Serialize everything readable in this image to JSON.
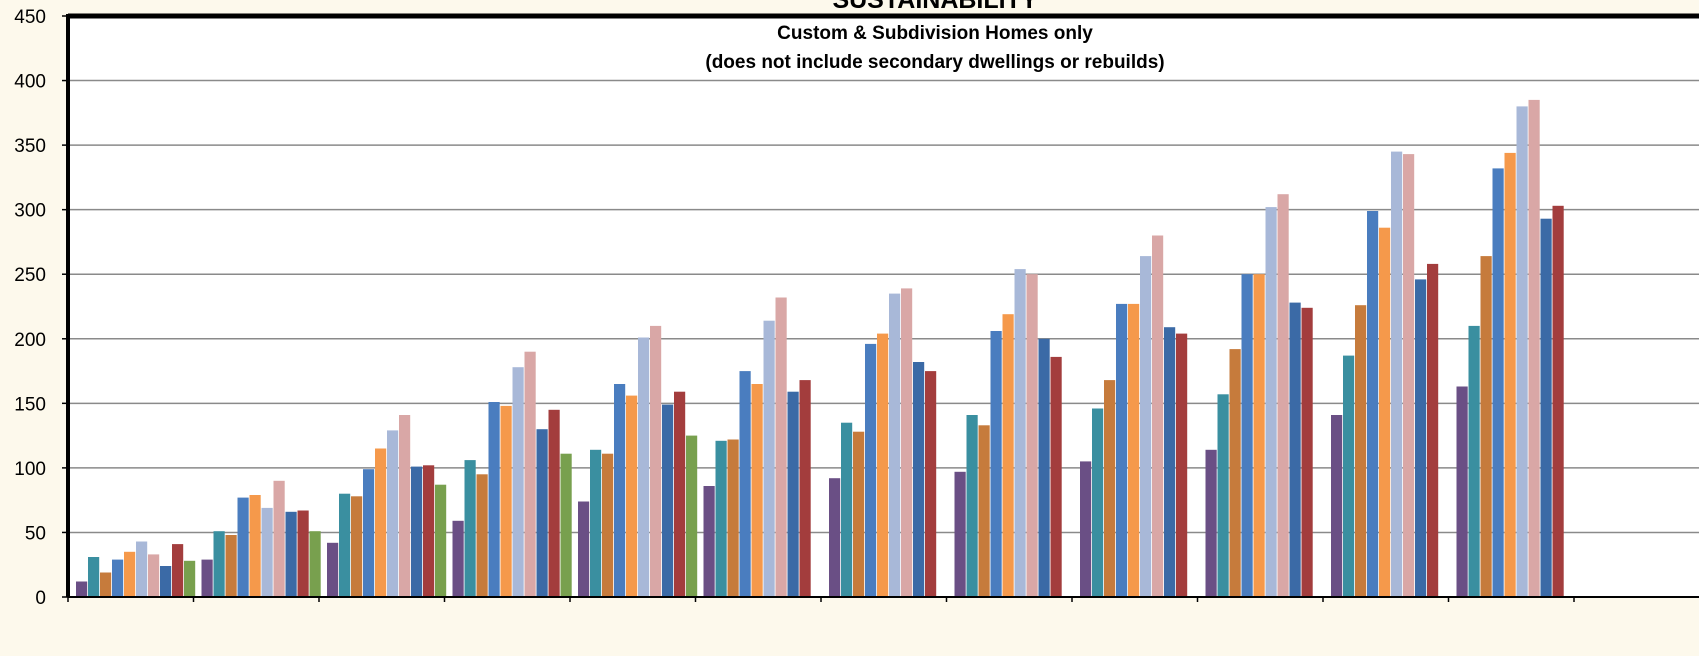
{
  "chart_data": {
    "type": "bar",
    "title": "SUSTAINABILITY",
    "subtitle_line1": "Custom & Subdivision Homes only",
    "subtitle_line2": "(does not include secondary dwellings or rebuilds)",
    "xlabel": "",
    "ylabel": "",
    "ylim": [
      0,
      450
    ],
    "y_ticks": [
      0,
      50,
      100,
      150,
      200,
      250,
      300,
      350,
      400,
      450
    ],
    "grid": true,
    "legend": "none visible",
    "categories": [
      "",
      "",
      "",
      "",
      "",
      "",
      "",
      "",
      "",
      "",
      "",
      ""
    ],
    "series": [
      {
        "color": "#6a4f85",
        "values": [
          12,
          29,
          42,
          59,
          74,
          86,
          92,
          97,
          105,
          114,
          141,
          163
        ]
      },
      {
        "color": "#3a8fa0",
        "values": [
          31,
          51,
          80,
          106,
          114,
          121,
          135,
          141,
          146,
          157,
          187,
          210
        ]
      },
      {
        "color": "#c67b3c",
        "values": [
          19,
          48,
          78,
          95,
          111,
          122,
          128,
          133,
          168,
          192,
          226,
          264
        ]
      },
      {
        "color": "#4a7dbf",
        "values": [
          29,
          77,
          99,
          151,
          165,
          175,
          196,
          206,
          227,
          250,
          299,
          332
        ]
      },
      {
        "color": "#f5994b",
        "values": [
          35,
          79,
          115,
          148,
          156,
          165,
          204,
          219,
          227,
          250,
          286,
          344
        ]
      },
      {
        "color": "#a8b8d8",
        "values": [
          43,
          69,
          129,
          178,
          201,
          214,
          235,
          254,
          264,
          302,
          345,
          380
        ]
      },
      {
        "color": "#d9a7a6",
        "values": [
          33,
          90,
          141,
          190,
          210,
          232,
          239,
          250,
          280,
          312,
          343,
          385
        ]
      },
      {
        "color": "#3b6aa6",
        "values": [
          24,
          66,
          101,
          130,
          149,
          159,
          182,
          200,
          209,
          228,
          246,
          293
        ]
      },
      {
        "color": "#a33d3d",
        "values": [
          41,
          67,
          102,
          145,
          159,
          168,
          175,
          186,
          204,
          224,
          258,
          303
        ]
      },
      {
        "color": "#78a04e",
        "values": [
          28,
          51,
          87,
          111,
          125,
          null,
          null,
          null,
          null,
          null,
          null,
          null
        ]
      }
    ]
  },
  "colors": {
    "background": "#fdf9ec",
    "plot_background": "#ffffff",
    "gridline": "#8a8a8a",
    "frame": "#000000"
  }
}
